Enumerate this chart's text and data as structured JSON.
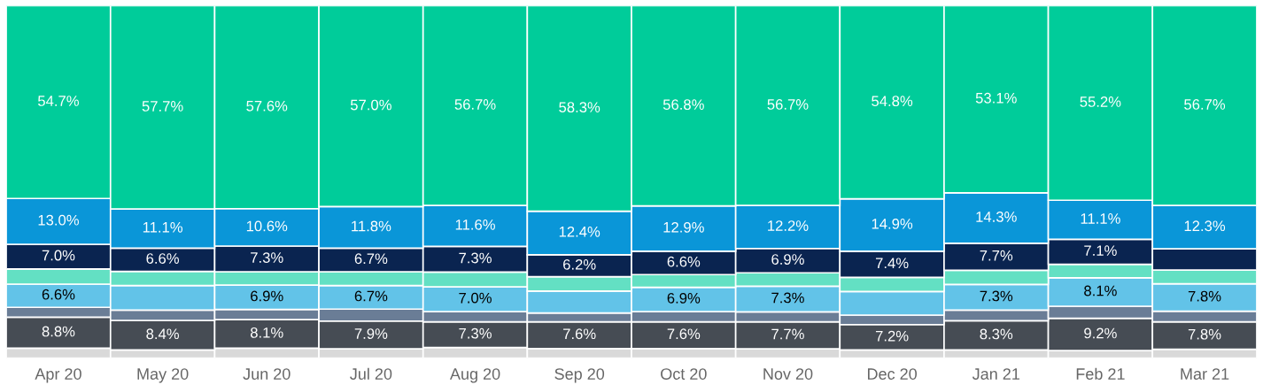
{
  "chart_data": {
    "type": "bar",
    "stacked": true,
    "tick_labels": "x",
    "ylim": [
      0,
      100
    ],
    "grid": false,
    "legend": false,
    "categories": [
      "Apr 20",
      "May 20",
      "Jun 20",
      "Jul 20",
      "Aug 20",
      "Sep 20",
      "Oct 20",
      "Nov 20",
      "Dec 20",
      "Jan 21",
      "Feb 21",
      "Mar 21"
    ],
    "series": [
      {
        "color": "#d9d9d9",
        "values": [
          2.8,
          2.3,
          2.8,
          2.6,
          3.0,
          2.7,
          2.7,
          2.6,
          2.3,
          2.3,
          2.1,
          2.5
        ],
        "value_labels": [
          null,
          null,
          null,
          null,
          null,
          null,
          null,
          null,
          null,
          null,
          null,
          null
        ]
      },
      {
        "color": "#464c54",
        "values": [
          8.8,
          8.4,
          8.1,
          7.9,
          7.3,
          7.6,
          7.6,
          7.7,
          7.2,
          8.3,
          9.2,
          7.8
        ],
        "value_labels": [
          "8.8%",
          "8.4%",
          "8.1%",
          "7.9%",
          "7.3%",
          "7.6%",
          "7.6%",
          "7.7%",
          "7.2%",
          "8.3%",
          "9.2%",
          "7.8%"
        ]
      },
      {
        "color": "#6a7d96",
        "values": [
          2.8,
          2.9,
          2.9,
          3.4,
          2.9,
          2.5,
          2.9,
          2.8,
          2.7,
          3.0,
          3.4,
          3.0
        ],
        "value_labels": [
          null,
          null,
          null,
          null,
          null,
          null,
          null,
          null,
          null,
          null,
          null,
          null
        ]
      },
      {
        "color": "#62c3e8",
        "values": [
          6.6,
          7.0,
          6.9,
          6.7,
          7.0,
          6.2,
          6.9,
          7.3,
          6.7,
          7.3,
          8.1,
          7.8
        ],
        "value_labels": [
          "6.6%",
          null,
          "6.9%",
          "6.7%",
          "7.0%",
          null,
          "6.9%",
          "7.3%",
          null,
          "7.3%",
          "8.1%",
          "7.8%"
        ]
      },
      {
        "color": "#63e0c3",
        "values": [
          4.3,
          4.0,
          3.8,
          3.9,
          4.2,
          4.1,
          3.6,
          3.8,
          4.0,
          4.0,
          3.8,
          3.9
        ],
        "value_labels": [
          null,
          null,
          null,
          null,
          null,
          null,
          null,
          null,
          null,
          null,
          null,
          null
        ]
      },
      {
        "color": "#0a2450",
        "values": [
          7.0,
          6.6,
          7.3,
          6.7,
          7.3,
          6.2,
          6.6,
          6.9,
          7.4,
          7.7,
          7.1,
          6.0
        ],
        "value_labels": [
          "7.0%",
          "6.6%",
          "7.3%",
          "6.7%",
          "7.3%",
          "6.2%",
          "6.6%",
          "6.9%",
          "7.4%",
          "7.7%",
          "7.1%",
          null
        ]
      },
      {
        "color": "#0a96d8",
        "values": [
          13.0,
          11.1,
          10.6,
          11.8,
          11.6,
          12.4,
          12.9,
          12.2,
          14.9,
          14.3,
          11.1,
          12.3
        ],
        "value_labels": [
          "13.0%",
          "11.1%",
          "10.6%",
          "11.8%",
          "11.6%",
          "12.4%",
          "12.9%",
          "12.2%",
          "14.9%",
          "14.3%",
          "11.1%",
          "12.3%"
        ]
      },
      {
        "color": "#00cc9a",
        "values": [
          54.7,
          57.7,
          57.6,
          57.0,
          56.7,
          58.3,
          56.8,
          56.7,
          54.8,
          53.1,
          55.2,
          56.7
        ],
        "value_labels": [
          "54.7%",
          "57.7%",
          "57.6%",
          "57.0%",
          "56.7%",
          "58.3%",
          "56.8%",
          "56.7%",
          "54.8%",
          "53.1%",
          "55.2%",
          "56.7%"
        ]
      }
    ]
  }
}
